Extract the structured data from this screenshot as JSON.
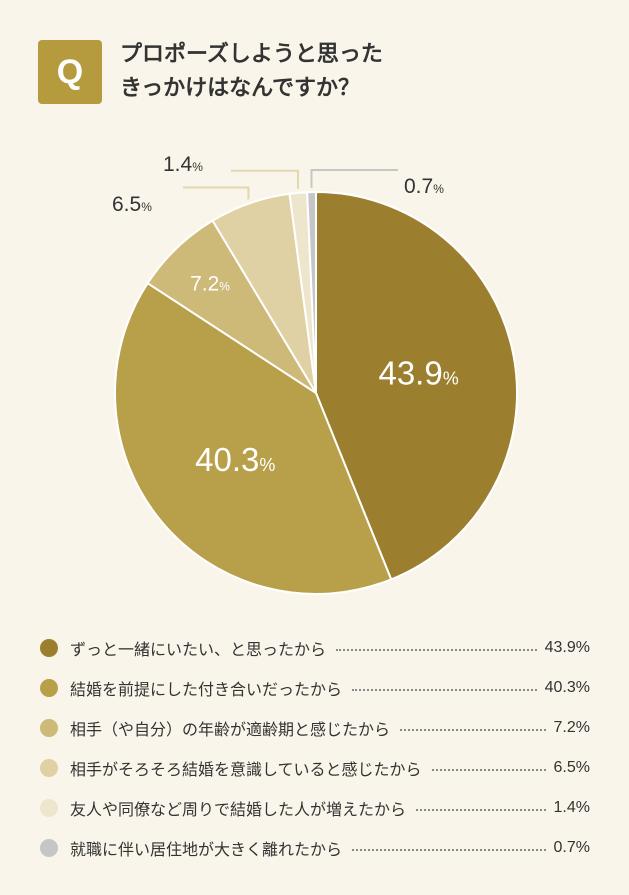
{
  "question": {
    "badge": "Q",
    "title_line1": "プロポーズしようと思った",
    "title_line2": "きっかけはなんですか？"
  },
  "chart_data": {
    "type": "pie",
    "categories": [
      "ずっと一緒にいたい、と思ったから",
      "結婚を前提にした付き合いだったから",
      "相手（や自分）の年齢が適齢期と感じたから",
      "相手がそろそろ結婚を意識していると感じたから",
      "友人や同僚など周りで結婚した人が増えたから",
      "就職に伴い居住地が大きく離れたから"
    ],
    "values": [
      43.9,
      40.3,
      7.2,
      6.5,
      1.4,
      0.7
    ],
    "value_labels": [
      "43.9",
      "40.3",
      "7.2",
      "6.5",
      "1.4",
      "0.7"
    ],
    "legend_values": [
      "43.9%",
      "40.3%",
      "7.2%",
      "6.5%",
      "1.4%",
      "0.7%"
    ],
    "unit": "%",
    "colors": [
      "#9c7f2e",
      "#b8a04a",
      "#cdb978",
      "#dfd1a3",
      "#eee6cc",
      "#c6c6c8"
    ],
    "legend_position": "bottom"
  }
}
